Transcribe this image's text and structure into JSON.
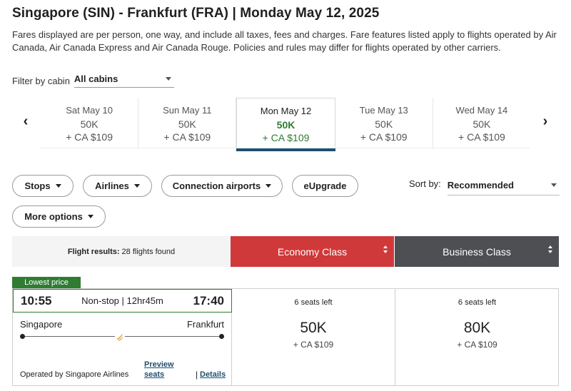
{
  "header": {
    "title": "Singapore (SIN) - Frankfurt (FRA)  |  Monday May 12, 2025",
    "disclaimer": "Fares displayed are per person, one way, and include all taxes, fees and charges. Fare features listed apply to flights operated by Air Canada, Air Canada Express and Air Canada Rouge. Policies and rules may differ for flights operated by other carriers."
  },
  "cabin_filter": {
    "label": "Filter by cabin",
    "value": "All cabins"
  },
  "date_carousel": {
    "prev_icon": "‹",
    "next_icon": "›",
    "dates": [
      {
        "day": "Sat May 10",
        "points": "50K",
        "cash": "+ CA $109",
        "selected": false
      },
      {
        "day": "Sun May 11",
        "points": "50K",
        "cash": "+ CA $109",
        "selected": false
      },
      {
        "day": "Mon May 12",
        "points": "50K",
        "cash": "+ CA $109",
        "selected": true
      },
      {
        "day": "Tue May 13",
        "points": "50K",
        "cash": "+ CA $109",
        "selected": false
      },
      {
        "day": "Wed May 14",
        "points": "50K",
        "cash": "+ CA $109",
        "selected": false
      }
    ]
  },
  "filters": {
    "stops": "Stops",
    "airlines": "Airlines",
    "connection_airports": "Connection airports",
    "eupgrade": "eUpgrade",
    "more_options": "More options"
  },
  "sort": {
    "label": "Sort by:",
    "value": "Recommended"
  },
  "results": {
    "label": "Flight results:",
    "count": "28 flights found",
    "economy_tab": "Economy Class",
    "business_tab": "Business Class"
  },
  "flight": {
    "badge": "Lowest price",
    "departure_time": "10:55",
    "duration": "Non-stop | 12hr45m",
    "arrival_time": "17:40",
    "origin": "Singapore",
    "destination": "Frankfurt",
    "operated_by": "Operated by Singapore Airlines",
    "preview_line1": "Preview",
    "preview_line2": "seats",
    "separator": "|",
    "details": "Details",
    "economy": {
      "seats": "6 seats left",
      "points": "50K",
      "cash": "+ CA $109"
    },
    "business": {
      "seats": "6 seats left",
      "points": "80K",
      "cash": "+ CA $109"
    }
  },
  "colors": {
    "economy": "#d0393a",
    "business": "#4d4f53",
    "lowest_price": "#2e7d32",
    "selected_underline": "#1e4f6e"
  }
}
